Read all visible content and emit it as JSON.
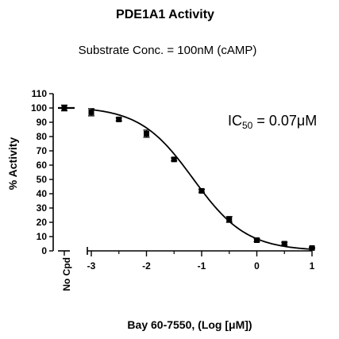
{
  "chart_data": {
    "type": "scatter",
    "title": "PDE1A1 Activity",
    "subtitle": "Substrate Conc. = 100nM (cAMP)",
    "annotation": {
      "prefix": "IC",
      "subscript": "50",
      "value": " = 0.07",
      "unit": "μM"
    },
    "ylabel": "% Activity",
    "xlabel": "Bay 60-7550, (Log [μM])",
    "ylim": [
      0,
      110
    ],
    "y_ticks": [
      0,
      10,
      20,
      30,
      40,
      50,
      60,
      70,
      80,
      90,
      100,
      110
    ],
    "xlim": [
      -3,
      1
    ],
    "x_ticks": [
      -3,
      -2,
      -1,
      0,
      1
    ],
    "x_tick_labels": [
      "-3",
      "-2",
      "-1",
      "0",
      "1"
    ],
    "no_compound_label": "No Cpd",
    "control": {
      "y": 100,
      "err": 2
    },
    "points": [
      {
        "x": -3.0,
        "y": 97,
        "err": 2.5
      },
      {
        "x": -2.5,
        "y": 92,
        "err": 1
      },
      {
        "x": -2.0,
        "y": 82,
        "err": 2.5
      },
      {
        "x": -1.5,
        "y": 64,
        "err": 1
      },
      {
        "x": -1.0,
        "y": 42,
        "err": 1
      },
      {
        "x": -0.5,
        "y": 22,
        "err": 2
      },
      {
        "x": 0.0,
        "y": 7.5,
        "err": 1
      },
      {
        "x": 0.5,
        "y": 5,
        "err": 1
      },
      {
        "x": 1.0,
        "y": 2,
        "err": 0.5
      }
    ],
    "fit": {
      "top": 101,
      "bottom": 0,
      "log_ic50": -1.155,
      "hill": 0.9
    },
    "colors": {
      "marks": "#000000",
      "background": "#ffffff"
    }
  }
}
